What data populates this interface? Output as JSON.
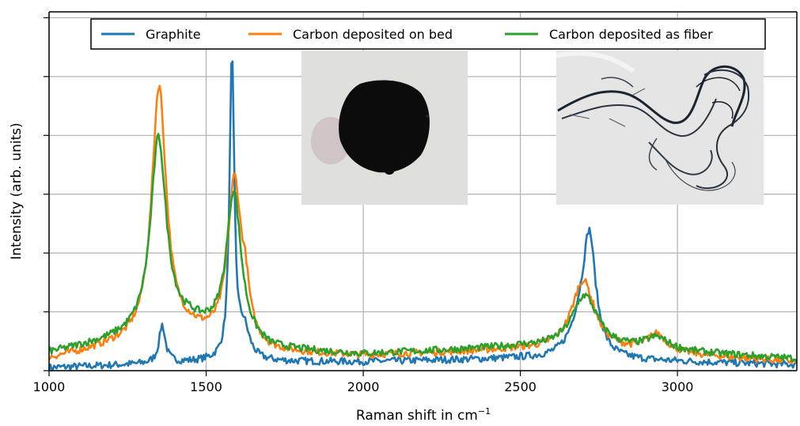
{
  "chart_data": {
    "type": "line",
    "xlabel": "Raman shift in cm",
    "xlabel_sup": "−1",
    "ylabel": "Intensity (arb. units)",
    "xlim": [
      1000,
      3380
    ],
    "ylim": [
      0,
      1.22
    ],
    "x_ticks": [
      1000,
      1500,
      2000,
      2500,
      3000
    ],
    "y_ticks": [
      0,
      0.2,
      0.4,
      0.6,
      0.8,
      1.0,
      1.2
    ],
    "grid": true,
    "y_tick_labels_shown": false,
    "legend_placement": "top-center",
    "series": [
      {
        "name": "Graphite",
        "color": "#1f77b4",
        "peaks": [
          {
            "center": 1360,
            "height": 0.13,
            "width": 12
          },
          {
            "center": 1582,
            "height": 1.03,
            "width": 9
          },
          {
            "center": 1620,
            "height": 0.1,
            "width": 22
          },
          {
            "center": 2720,
            "height": 0.38,
            "width": 24
          },
          {
            "center": 2690,
            "height": 0.1,
            "width": 40
          }
        ],
        "baseline": [
          [
            1000,
            0.01
          ],
          [
            1500,
            0.03
          ],
          [
            2000,
            0.03
          ],
          [
            2500,
            0.04
          ],
          [
            3000,
            0.03
          ],
          [
            3380,
            0.02
          ]
        ],
        "noise": 0.012
      },
      {
        "name": "Carbon deposited on bed",
        "color": "#ff7f0e",
        "peaks": [
          {
            "center": 1350,
            "height": 0.86,
            "width": 28
          },
          {
            "center": 1590,
            "height": 0.55,
            "width": 26
          },
          {
            "center": 1625,
            "height": 0.12,
            "width": 15
          },
          {
            "center": 2700,
            "height": 0.24,
            "width": 45
          },
          {
            "center": 2935,
            "height": 0.06,
            "width": 40
          }
        ],
        "baseline": [
          [
            1000,
            0.04
          ],
          [
            1200,
            0.08
          ],
          [
            1450,
            0.12
          ],
          [
            1700,
            0.06
          ],
          [
            2000,
            0.05
          ],
          [
            2500,
            0.07
          ],
          [
            2900,
            0.06
          ],
          [
            3380,
            0.03
          ]
        ],
        "noise": 0.012
      },
      {
        "name": "Carbon deposited as fiber",
        "color": "#2ca02c",
        "peaks": [
          {
            "center": 1348,
            "height": 0.66,
            "width": 30
          },
          {
            "center": 1588,
            "height": 0.5,
            "width": 28
          },
          {
            "center": 2705,
            "height": 0.18,
            "width": 50
          },
          {
            "center": 2935,
            "height": 0.04,
            "width": 45
          }
        ],
        "baseline": [
          [
            1000,
            0.06
          ],
          [
            1200,
            0.1
          ],
          [
            1450,
            0.15
          ],
          [
            1700,
            0.07
          ],
          [
            2000,
            0.055
          ],
          [
            2500,
            0.08
          ],
          [
            2900,
            0.07
          ],
          [
            3380,
            0.04
          ]
        ],
        "noise": 0.012
      }
    ]
  }
}
